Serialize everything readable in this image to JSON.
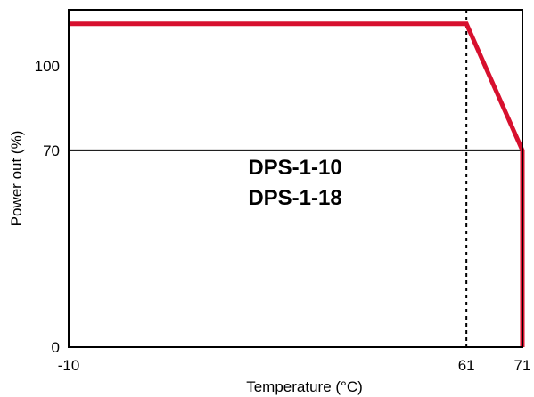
{
  "chart_data": {
    "type": "line",
    "title": "",
    "xlabel": "Temperature (°C)",
    "ylabel": "Power out (%)",
    "xlim": [
      -10,
      71
    ],
    "ylim": [
      0,
      120
    ],
    "x_ticks": [
      {
        "value": -10,
        "label": "-10"
      },
      {
        "value": 61,
        "label": "61"
      },
      {
        "value": 71,
        "label": "71"
      }
    ],
    "y_ticks": [
      {
        "value": 0,
        "label": "0"
      },
      {
        "value": 70,
        "label": "70"
      },
      {
        "value": 100,
        "label": "100"
      }
    ],
    "grid": false,
    "legend": "none",
    "reference_lines": [
      {
        "axis": "y",
        "value": 70,
        "style": "solid",
        "color": "#000000"
      },
      {
        "axis": "x",
        "value": 61,
        "style": "dotted",
        "color": "#000000"
      }
    ],
    "series": [
      {
        "color": "#d7102e",
        "x": [
          -10,
          61,
          71,
          71
        ],
        "y": [
          115,
          115,
          70,
          0
        ]
      }
    ],
    "annotations": [
      "DPS-1-10",
      "DPS-1-18"
    ]
  }
}
